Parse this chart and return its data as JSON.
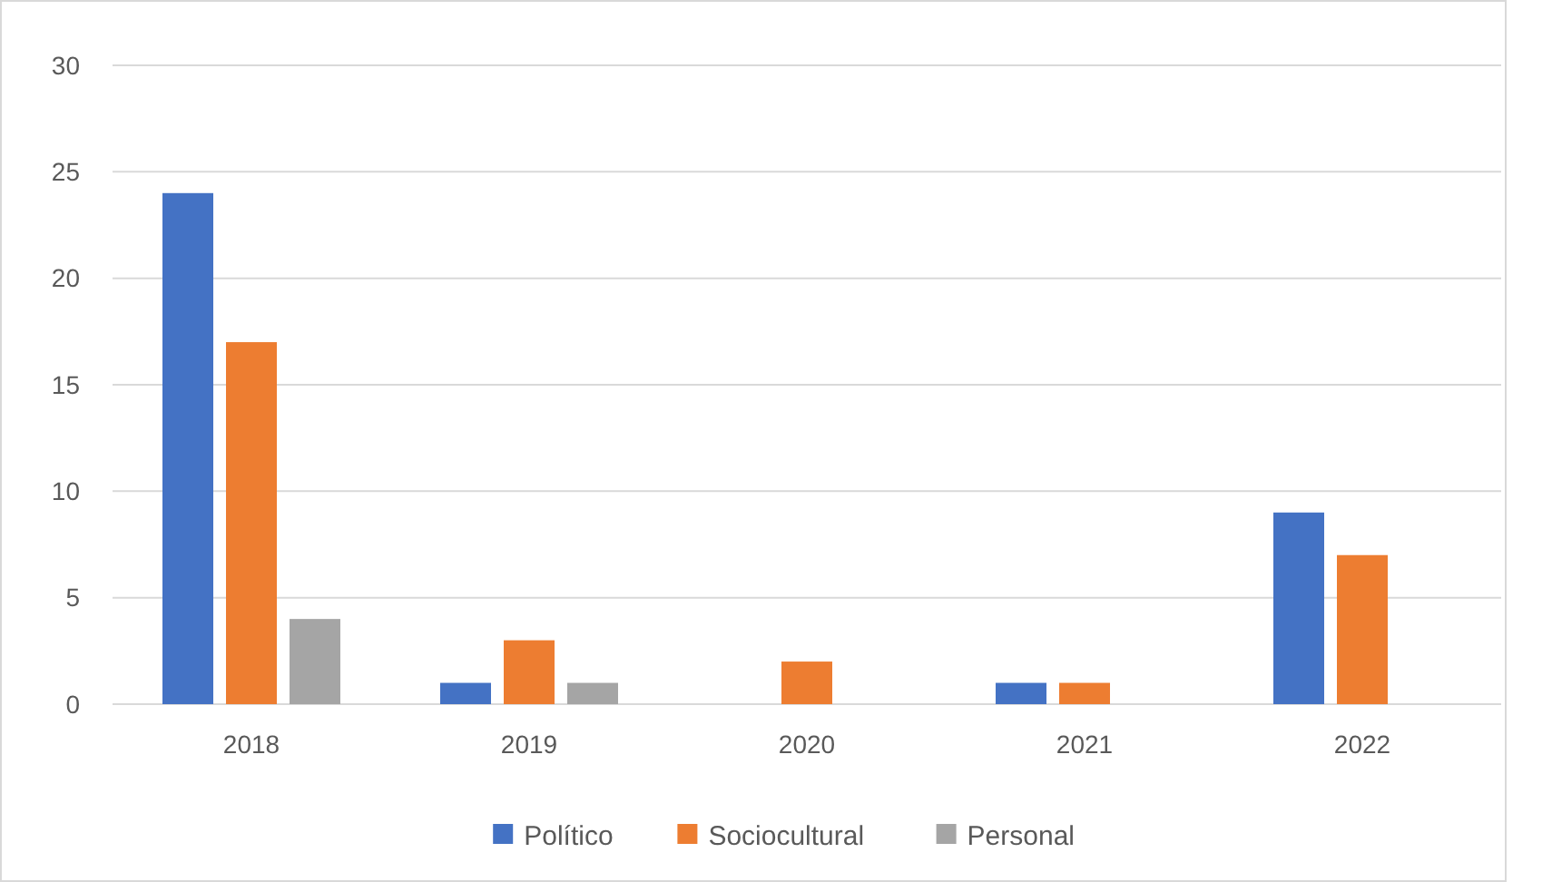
{
  "chart_data": {
    "type": "bar",
    "categories": [
      "2018",
      "2019",
      "2020",
      "2021",
      "2022"
    ],
    "series": [
      {
        "name": "Político",
        "color": "#4472c4",
        "values": [
          24,
          1,
          0,
          1,
          9
        ]
      },
      {
        "name": "Sociocultural",
        "color": "#ed7d31",
        "values": [
          17,
          3,
          2,
          1,
          7
        ]
      },
      {
        "name": "Personal",
        "color": "#a5a5a5",
        "values": [
          4,
          1,
          0,
          0,
          0
        ]
      }
    ],
    "ylim": [
      0,
      30
    ],
    "yticks": [
      0,
      5,
      10,
      15,
      20,
      25,
      30
    ],
    "grid": "y",
    "legend": "bottom"
  }
}
